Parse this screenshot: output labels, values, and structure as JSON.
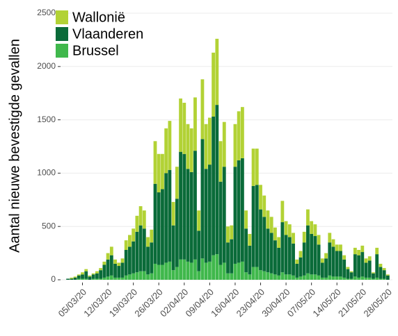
{
  "chart_data": {
    "type": "stacked_bar",
    "y_label": "Aantal nieuwe bevestigde gevallen",
    "categories": [
      null,
      null,
      null,
      null,
      "05/03/20",
      null,
      null,
      null,
      null,
      null,
      null,
      "12/03/20",
      null,
      null,
      null,
      null,
      null,
      null,
      "19/03/20",
      null,
      null,
      null,
      null,
      null,
      null,
      "26/03/20",
      null,
      null,
      null,
      null,
      null,
      null,
      "02/04/20",
      null,
      null,
      null,
      null,
      null,
      null,
      "09/04/20",
      null,
      null,
      null,
      null,
      null,
      null,
      "16/04/20",
      null,
      null,
      null,
      null,
      null,
      null,
      "23/04/20",
      null,
      null,
      null,
      null,
      null,
      null,
      "30/04/20",
      null,
      null,
      null,
      null,
      null,
      null,
      "07/05/20",
      null,
      null,
      null,
      null,
      null,
      null,
      "14/05/20",
      null,
      null,
      null,
      null,
      null,
      null,
      "21/05/20",
      null,
      null,
      null,
      null,
      null,
      null,
      "28/05/20"
    ],
    "series": [
      {
        "name": "Wallonië",
        "color": "#b2d235",
        "values": [
          0,
          10,
          10,
          10,
          20,
          20,
          10,
          10,
          20,
          20,
          30,
          60,
          80,
          40,
          30,
          40,
          90,
          110,
          120,
          150,
          180,
          170,
          90,
          120,
          400,
          360,
          330,
          420,
          460,
          220,
          300,
          500,
          480,
          420,
          410,
          500,
          190,
          560,
          420,
          440,
          600,
          620,
          380,
          420,
          150,
          130,
          400,
          460,
          480,
          170,
          110,
          350,
          340,
          230,
          200,
          170,
          150,
          120,
          100,
          200,
          130,
          120,
          100,
          40,
          60,
          100,
          150,
          120,
          110,
          90,
          40,
          50,
          90,
          70,
          60,
          60,
          40,
          20,
          10,
          60,
          50,
          60,
          40,
          40,
          10,
          60,
          30,
          20,
          10
        ]
      },
      {
        "name": "Vlaanderen",
        "color": "#0a6b39",
        "values": [
          10,
          10,
          20,
          30,
          40,
          70,
          30,
          40,
          50,
          80,
          120,
          160,
          190,
          130,
          110,
          140,
          240,
          260,
          300,
          380,
          430,
          400,
          260,
          290,
          750,
          680,
          710,
          840,
          860,
          420,
          640,
          1010,
          990,
          870,
          850,
          1020,
          380,
          1120,
          880,
          910,
          1300,
          1400,
          780,
          900,
          290,
          320,
          910,
          960,
          970,
          410,
          270,
          760,
          770,
          570,
          510,
          410,
          380,
          320,
          260,
          470,
          370,
          350,
          300,
          130,
          180,
          310,
          450,
          380,
          360,
          290,
          140,
          180,
          310,
          280,
          240,
          240,
          170,
          90,
          60,
          210,
          210,
          230,
          140,
          160,
          50,
          220,
          110,
          80,
          40
        ]
      },
      {
        "name": "Brussel",
        "color": "#40b84c",
        "values": [
          0,
          0,
          0,
          10,
          10,
          10,
          0,
          10,
          10,
          10,
          20,
          30,
          40,
          20,
          20,
          20,
          40,
          50,
          60,
          70,
          80,
          80,
          50,
          60,
          150,
          140,
          140,
          160,
          170,
          90,
          120,
          190,
          190,
          170,
          160,
          190,
          80,
          200,
          160,
          170,
          230,
          240,
          140,
          160,
          60,
          60,
          150,
          160,
          170,
          70,
          50,
          120,
          120,
          90,
          80,
          70,
          60,
          50,
          40,
          70,
          50,
          50,
          40,
          20,
          30,
          40,
          60,
          50,
          50,
          40,
          20,
          20,
          40,
          30,
          30,
          30,
          20,
          10,
          10,
          30,
          20,
          30,
          20,
          20,
          10,
          20,
          10,
          10,
          0
        ]
      }
    ],
    "ylim": [
      0,
      2500
    ],
    "yticks": [
      0,
      500,
      1000,
      1500,
      2000,
      2500
    ],
    "grid": true,
    "legend": "top-left"
  }
}
